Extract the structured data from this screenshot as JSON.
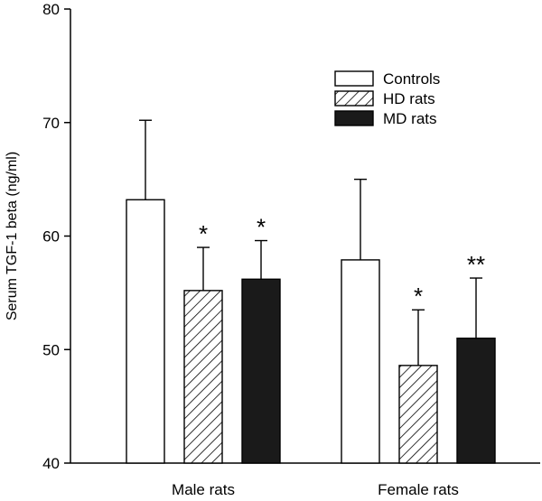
{
  "chart_data": {
    "type": "bar",
    "title": "",
    "xlabel": "",
    "ylabel": "Serum TGF-1 beta (ng/ml)",
    "ylim": [
      40,
      80
    ],
    "yticks": [
      40,
      50,
      60,
      70,
      80
    ],
    "categories": [
      "Male rats",
      "Female rats"
    ],
    "legend_position": "top-right",
    "series": [
      {
        "name": "Controls",
        "fill": "white",
        "values": [
          63.2,
          57.9
        ],
        "errors": [
          7.0,
          7.1
        ],
        "annotations": [
          "",
          ""
        ]
      },
      {
        "name": "HD rats",
        "fill": "hatched",
        "values": [
          55.2,
          48.6
        ],
        "errors": [
          3.8,
          4.9
        ],
        "annotations": [
          "*",
          "*"
        ]
      },
      {
        "name": "MD rats",
        "fill": "black",
        "values": [
          56.2,
          51.0
        ],
        "errors": [
          3.4,
          5.3
        ],
        "annotations": [
          "*",
          "**"
        ]
      }
    ],
    "grid": false
  },
  "colors": {
    "axis": "#000000",
    "bar_black": "#1a1a1a",
    "bar_white": "#ffffff"
  }
}
